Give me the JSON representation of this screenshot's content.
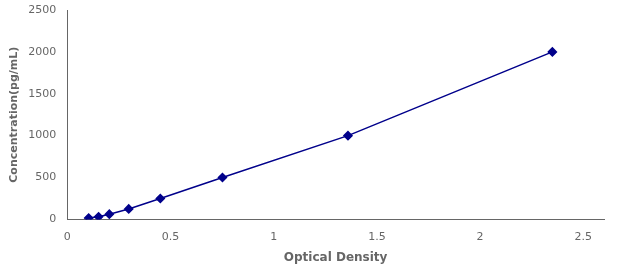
{
  "chart_data": {
    "type": "line",
    "x": [
      0.104,
      0.152,
      0.204,
      0.298,
      0.451,
      0.752,
      1.36,
      2.35
    ],
    "values": [
      15.6,
      31.25,
      62.5,
      125,
      250,
      500,
      1000,
      2000
    ],
    "color": "#00008B",
    "marker": "diamond",
    "xlabel": "Optical Density",
    "ylabel": "Concentration(pg/mL)",
    "xlim": [
      0.0,
      2.6
    ],
    "ylim": [
      0,
      2500
    ],
    "xticks": [
      0,
      0.5,
      1.0,
      1.5,
      2.0,
      2.5
    ],
    "yticks": [
      0,
      500,
      1000,
      1500,
      2000,
      2500
    ],
    "grid": false,
    "legend": false
  }
}
